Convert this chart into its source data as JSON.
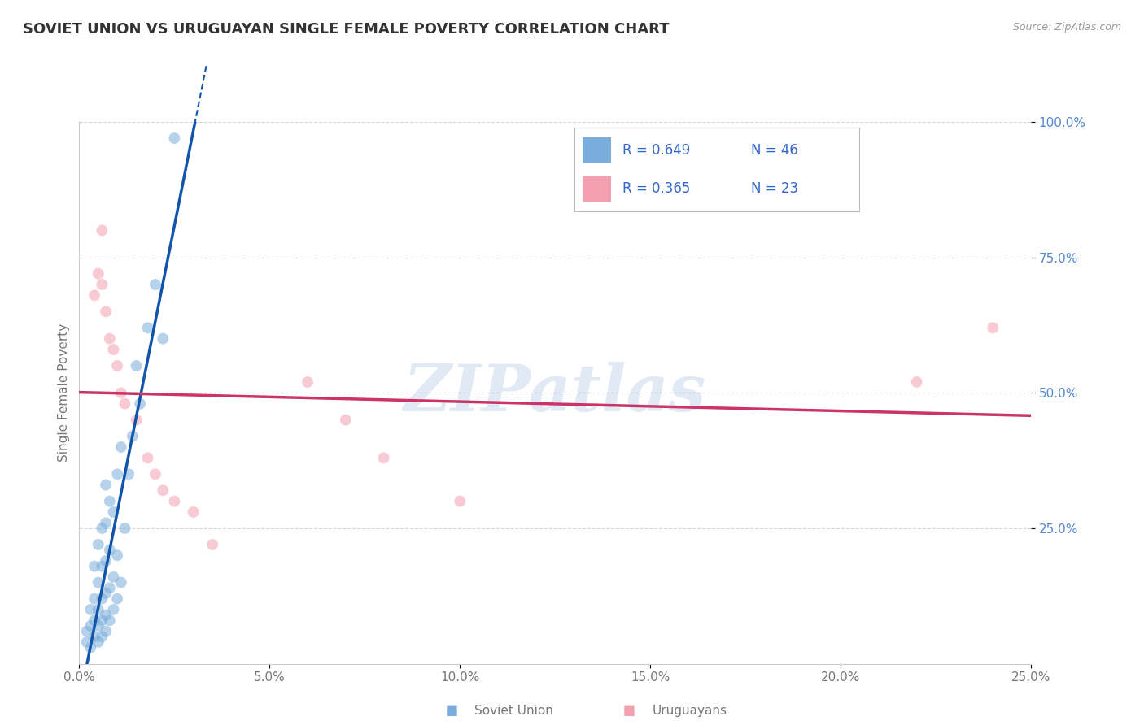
{
  "title": "SOVIET UNION VS URUGUAYAN SINGLE FEMALE POVERTY CORRELATION CHART",
  "source": "Source: ZipAtlas.com",
  "xlabel_soviet": "Soviet Union",
  "xlabel_uruguayan": "Uruguayans",
  "ylabel": "Single Female Poverty",
  "watermark": "ZIPatlas",
  "xlim": [
    0.0,
    0.25
  ],
  "ylim": [
    0.0,
    1.0
  ],
  "xticks": [
    0.0,
    0.05,
    0.1,
    0.15,
    0.2,
    0.25
  ],
  "yticks": [
    0.25,
    0.5,
    0.75,
    1.0
  ],
  "xtick_labels": [
    "0.0%",
    "5.0%",
    "10.0%",
    "15.0%",
    "20.0%",
    "25.0%"
  ],
  "ytick_labels": [
    "25.0%",
    "50.0%",
    "75.0%",
    "100.0%"
  ],
  "soviet_R": 0.649,
  "soviet_N": 46,
  "uruguayan_R": 0.365,
  "uruguayan_N": 23,
  "soviet_color": "#7AADDC",
  "uruguayan_color": "#F4A0B0",
  "soviet_line_color": "#1155AA",
  "uruguayan_line_color": "#CC3366",
  "background_color": "#FFFFFF",
  "grid_color": "#CCCCCC",
  "legend_text_color": "#3366CC",
  "soviet_x": [
    0.002,
    0.002,
    0.003,
    0.003,
    0.003,
    0.004,
    0.004,
    0.004,
    0.004,
    0.005,
    0.005,
    0.005,
    0.005,
    0.005,
    0.006,
    0.006,
    0.006,
    0.006,
    0.006,
    0.007,
    0.007,
    0.007,
    0.007,
    0.007,
    0.007,
    0.008,
    0.008,
    0.008,
    0.008,
    0.009,
    0.009,
    0.009,
    0.01,
    0.01,
    0.01,
    0.011,
    0.011,
    0.012,
    0.013,
    0.014,
    0.015,
    0.016,
    0.018,
    0.02,
    0.022,
    0.025
  ],
  "soviet_y": [
    0.04,
    0.06,
    0.03,
    0.07,
    0.1,
    0.05,
    0.08,
    0.12,
    0.18,
    0.04,
    0.07,
    0.1,
    0.15,
    0.22,
    0.05,
    0.08,
    0.12,
    0.18,
    0.25,
    0.06,
    0.09,
    0.13,
    0.19,
    0.26,
    0.33,
    0.08,
    0.14,
    0.21,
    0.3,
    0.1,
    0.16,
    0.28,
    0.12,
    0.2,
    0.35,
    0.15,
    0.4,
    0.25,
    0.35,
    0.42,
    0.55,
    0.48,
    0.62,
    0.7,
    0.6,
    0.97
  ],
  "uruguayan_x": [
    0.004,
    0.005,
    0.006,
    0.006,
    0.007,
    0.008,
    0.009,
    0.01,
    0.011,
    0.012,
    0.015,
    0.018,
    0.02,
    0.022,
    0.025,
    0.03,
    0.035,
    0.06,
    0.07,
    0.08,
    0.1,
    0.22,
    0.24
  ],
  "uruguayan_y": [
    0.68,
    0.72,
    0.7,
    0.8,
    0.65,
    0.6,
    0.58,
    0.55,
    0.5,
    0.48,
    0.45,
    0.38,
    0.35,
    0.32,
    0.3,
    0.28,
    0.22,
    0.52,
    0.45,
    0.38,
    0.3,
    0.52,
    0.62
  ],
  "figsize": [
    14.06,
    8.92
  ],
  "dpi": 100
}
